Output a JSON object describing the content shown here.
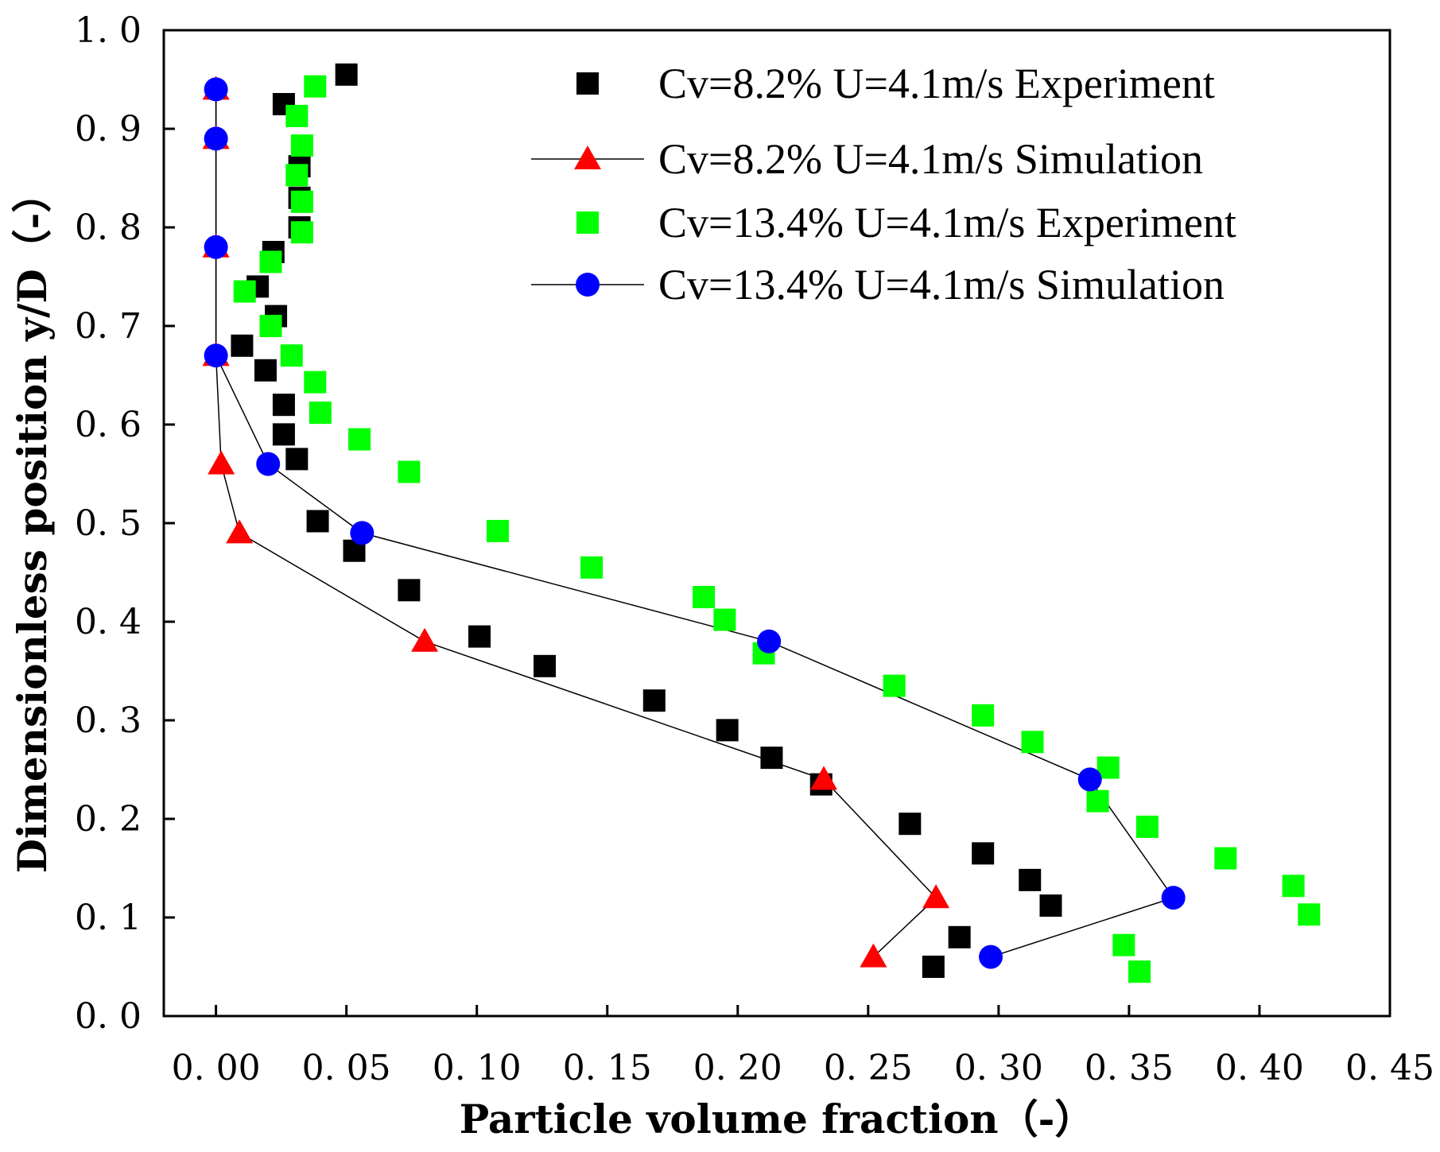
{
  "chart_data": {
    "type": "scatter",
    "xlabel": "Particle volume fraction（-）",
    "ylabel": "Dimensionless position y/D（-）",
    "xlim": [
      -0.02,
      0.45
    ],
    "ylim": [
      0.0,
      1.0
    ],
    "xticks": [
      0.0,
      0.05,
      0.1,
      0.15,
      0.2,
      0.25,
      0.3,
      0.35,
      0.4,
      0.45
    ],
    "xtick_labels": [
      "0. 00",
      "0. 05",
      "0. 10",
      "0. 15",
      "0. 20",
      "0. 25",
      "0. 30",
      "0. 35",
      "0. 40",
      "0. 45"
    ],
    "yticks": [
      0.0,
      0.1,
      0.2,
      0.3,
      0.4,
      0.5,
      0.6,
      0.7,
      0.8,
      0.9,
      1.0
    ],
    "ytick_labels": [
      "0. 0",
      "0. 1",
      "0. 2",
      "0. 3",
      "0. 4",
      "0. 5",
      "0. 6",
      "0. 7",
      "0. 8",
      "0. 9",
      "1. 0"
    ],
    "legend_position": "top-right",
    "grid": false,
    "series": [
      {
        "name": "Cv=8.2% U=4.1m/s Experiment",
        "marker": "square",
        "color": "#000000",
        "line": false,
        "points": [
          [
            0.05,
            0.955
          ],
          [
            0.026,
            0.925
          ],
          [
            0.032,
            0.862
          ],
          [
            0.032,
            0.83
          ],
          [
            0.032,
            0.8
          ],
          [
            0.022,
            0.775
          ],
          [
            0.016,
            0.74
          ],
          [
            0.023,
            0.71
          ],
          [
            0.01,
            0.68
          ],
          [
            0.019,
            0.655
          ],
          [
            0.026,
            0.62
          ],
          [
            0.026,
            0.59
          ],
          [
            0.031,
            0.565
          ],
          [
            0.039,
            0.502
          ],
          [
            0.053,
            0.472
          ],
          [
            0.074,
            0.432
          ],
          [
            0.101,
            0.385
          ],
          [
            0.126,
            0.355
          ],
          [
            0.168,
            0.32
          ],
          [
            0.196,
            0.29
          ],
          [
            0.213,
            0.262
          ],
          [
            0.232,
            0.235
          ],
          [
            0.266,
            0.195
          ],
          [
            0.294,
            0.165
          ],
          [
            0.312,
            0.138
          ],
          [
            0.32,
            0.112
          ],
          [
            0.285,
            0.08
          ],
          [
            0.275,
            0.05
          ]
        ]
      },
      {
        "name": "Cv=8.2% U=4.1m/s Simulation",
        "marker": "triangle",
        "color": "#ff0000",
        "line": true,
        "points": [
          [
            0.0,
            0.94
          ],
          [
            0.0,
            0.89
          ],
          [
            0.0,
            0.78
          ],
          [
            0.0,
            0.67
          ],
          [
            0.002,
            0.56
          ],
          [
            0.009,
            0.49
          ],
          [
            0.08,
            0.38
          ],
          [
            0.233,
            0.24
          ],
          [
            0.276,
            0.12
          ],
          [
            0.252,
            0.06
          ]
        ]
      },
      {
        "name": "Cv=13.4% U=4.1m/s Experiment",
        "marker": "square",
        "color": "#00ff00",
        "line": false,
        "points": [
          [
            0.038,
            0.943
          ],
          [
            0.031,
            0.913
          ],
          [
            0.033,
            0.883
          ],
          [
            0.031,
            0.853
          ],
          [
            0.033,
            0.826
          ],
          [
            0.033,
            0.795
          ],
          [
            0.021,
            0.765
          ],
          [
            0.011,
            0.735
          ],
          [
            0.021,
            0.7
          ],
          [
            0.029,
            0.67
          ],
          [
            0.038,
            0.643
          ],
          [
            0.04,
            0.612
          ],
          [
            0.055,
            0.585
          ],
          [
            0.074,
            0.552
          ],
          [
            0.108,
            0.492
          ],
          [
            0.144,
            0.455
          ],
          [
            0.187,
            0.425
          ],
          [
            0.195,
            0.402
          ],
          [
            0.21,
            0.368
          ],
          [
            0.26,
            0.335
          ],
          [
            0.294,
            0.305
          ],
          [
            0.313,
            0.278
          ],
          [
            0.342,
            0.252
          ],
          [
            0.338,
            0.218
          ],
          [
            0.357,
            0.192
          ],
          [
            0.387,
            0.16
          ],
          [
            0.413,
            0.132
          ],
          [
            0.419,
            0.103
          ],
          [
            0.348,
            0.072
          ],
          [
            0.354,
            0.045
          ]
        ]
      },
      {
        "name": "Cv=13.4% U=4.1m/s Simulation",
        "marker": "circle",
        "color": "#0000ff",
        "line": true,
        "points": [
          [
            0.0,
            0.94
          ],
          [
            0.0,
            0.89
          ],
          [
            0.0,
            0.78
          ],
          [
            0.0,
            0.67
          ],
          [
            0.02,
            0.56
          ],
          [
            0.056,
            0.49
          ],
          [
            0.212,
            0.38
          ],
          [
            0.335,
            0.24
          ],
          [
            0.367,
            0.12
          ],
          [
            0.297,
            0.06
          ]
        ]
      }
    ]
  }
}
